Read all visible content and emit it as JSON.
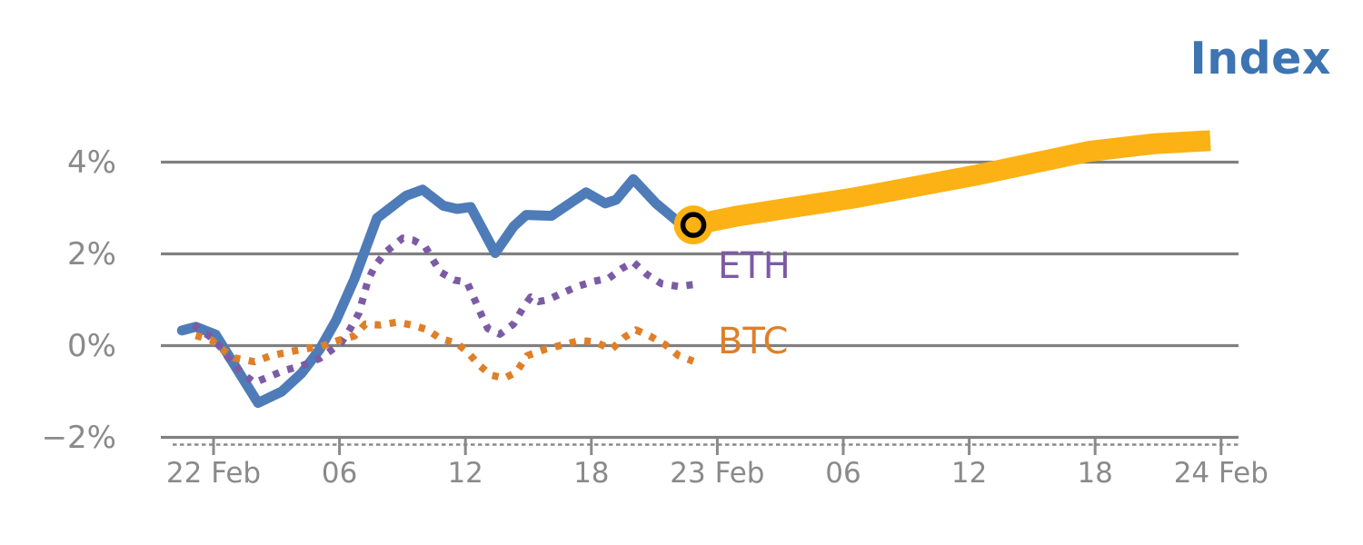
{
  "title": {
    "text": "Index"
  },
  "series_labels": {
    "eth": "ETH",
    "btc": "BTC"
  },
  "colors": {
    "title": "#3d74b2",
    "index_line": "#4e7cb8",
    "eth_line": "#7c5ba5",
    "btc_line": "#df7f28",
    "forecast_band": "#fcb215",
    "marker_ring": "#000000",
    "grid": "#808080",
    "axis": "#8a8a8a",
    "tick_text": "#8a8a8a"
  },
  "chart_data": {
    "type": "line",
    "title": "Index",
    "xlabel": "",
    "ylabel": "",
    "x_unit": "hours since 22 Feb 00:00",
    "y_unit": "percent change",
    "xlim": [
      -2.5,
      48.8
    ],
    "ylim": [
      -2.8,
      4.9
    ],
    "grid": "horizontal",
    "legend_position": "labels at right end of lines",
    "x_ticks": [
      {
        "hour": 0,
        "label": "22 Feb"
      },
      {
        "hour": 6,
        "label": "06"
      },
      {
        "hour": 12,
        "label": "12"
      },
      {
        "hour": 18,
        "label": "18"
      },
      {
        "hour": 24,
        "label": "23 Feb"
      },
      {
        "hour": 30,
        "label": "06"
      },
      {
        "hour": 36,
        "label": "12"
      },
      {
        "hour": 42,
        "label": "18"
      },
      {
        "hour": 48,
        "label": "24 Feb"
      }
    ],
    "y_ticks": [
      {
        "value": 4,
        "label": "4%"
      },
      {
        "value": 2,
        "label": "2%"
      },
      {
        "value": 0,
        "label": "0%"
      },
      {
        "value": -2,
        "label": "−2%"
      }
    ],
    "series": [
      {
        "name": "Index (history)",
        "style": "solid",
        "color_key": "index_line",
        "points": [
          [
            -1.5,
            0.33
          ],
          [
            -0.85,
            0.41
          ],
          [
            0.1,
            0.24
          ],
          [
            1.17,
            -0.55
          ],
          [
            2.12,
            -1.25
          ],
          [
            3.25,
            -1.0
          ],
          [
            4.2,
            -0.6
          ],
          [
            5.06,
            -0.08
          ],
          [
            5.84,
            0.55
          ],
          [
            6.71,
            1.45
          ],
          [
            7.79,
            2.78
          ],
          [
            9.18,
            3.27
          ],
          [
            9.96,
            3.4
          ],
          [
            10.95,
            3.05
          ],
          [
            11.6,
            2.98
          ],
          [
            12.25,
            3.02
          ],
          [
            12.8,
            2.55
          ],
          [
            13.42,
            2.02
          ],
          [
            14.3,
            2.6
          ],
          [
            14.9,
            2.85
          ],
          [
            16.1,
            2.83
          ],
          [
            17.75,
            3.34
          ],
          [
            18.66,
            3.1
          ],
          [
            19.18,
            3.18
          ],
          [
            20.0,
            3.63
          ],
          [
            21.08,
            3.1
          ],
          [
            22.08,
            2.72
          ],
          [
            22.86,
            2.63
          ]
        ]
      },
      {
        "name": "ETH",
        "style": "dotted",
        "color_key": "eth_line",
        "points": [
          [
            -0.95,
            0.45
          ],
          [
            -0.09,
            0.17
          ],
          [
            0.43,
            -0.08
          ],
          [
            0.87,
            -0.38
          ],
          [
            1.39,
            -0.61
          ],
          [
            1.95,
            -0.81
          ],
          [
            2.68,
            -0.67
          ],
          [
            3.38,
            -0.54
          ],
          [
            4.2,
            -0.44
          ],
          [
            5.06,
            -0.28
          ],
          [
            6.06,
            0.05
          ],
          [
            6.49,
            0.35
          ],
          [
            6.93,
            0.71
          ],
          [
            7.36,
            1.43
          ],
          [
            7.71,
            1.75
          ],
          [
            8.23,
            2.05
          ],
          [
            9.0,
            2.34
          ],
          [
            9.52,
            2.3
          ],
          [
            10.09,
            2.15
          ],
          [
            10.48,
            1.85
          ],
          [
            10.82,
            1.6
          ],
          [
            11.47,
            1.43
          ],
          [
            12.08,
            1.38
          ],
          [
            12.47,
            0.97
          ],
          [
            12.77,
            0.66
          ],
          [
            13.07,
            0.37
          ],
          [
            13.64,
            0.25
          ],
          [
            14.29,
            0.47
          ],
          [
            14.72,
            0.8
          ],
          [
            15.11,
            1.06
          ],
          [
            15.5,
            0.96
          ],
          [
            15.93,
            1.0
          ],
          [
            16.54,
            1.13
          ],
          [
            17.32,
            1.29
          ],
          [
            18.1,
            1.4
          ],
          [
            18.83,
            1.47
          ],
          [
            19.48,
            1.69
          ],
          [
            20.0,
            1.82
          ],
          [
            20.65,
            1.55
          ],
          [
            21.34,
            1.35
          ],
          [
            22.16,
            1.29
          ],
          [
            22.86,
            1.33
          ]
        ]
      },
      {
        "name": "BTC",
        "style": "dotted",
        "color_key": "btc_line",
        "points": [
          [
            -0.85,
            0.22
          ],
          [
            -0.1,
            0.12
          ],
          [
            0.35,
            -0.06
          ],
          [
            1.0,
            -0.27
          ],
          [
            1.95,
            -0.35
          ],
          [
            2.73,
            -0.22
          ],
          [
            3.46,
            -0.15
          ],
          [
            4.24,
            -0.08
          ],
          [
            5.11,
            -0.02
          ],
          [
            5.93,
            0.11
          ],
          [
            6.71,
            0.21
          ],
          [
            7.23,
            0.47
          ],
          [
            7.92,
            0.45
          ],
          [
            8.74,
            0.51
          ],
          [
            9.44,
            0.45
          ],
          [
            10.17,
            0.35
          ],
          [
            10.82,
            0.15
          ],
          [
            11.6,
            0.05
          ],
          [
            12.12,
            -0.15
          ],
          [
            12.64,
            -0.42
          ],
          [
            13.2,
            -0.64
          ],
          [
            13.85,
            -0.71
          ],
          [
            14.42,
            -0.58
          ],
          [
            14.94,
            -0.22
          ],
          [
            15.8,
            -0.08
          ],
          [
            16.58,
            0.01
          ],
          [
            17.45,
            0.11
          ],
          [
            18.18,
            0.08
          ],
          [
            18.96,
            -0.08
          ],
          [
            19.57,
            0.18
          ],
          [
            20.13,
            0.34
          ],
          [
            20.78,
            0.21
          ],
          [
            21.52,
            0.02
          ],
          [
            22.16,
            -0.22
          ],
          [
            22.86,
            -0.34
          ]
        ]
      },
      {
        "name": "Index (forecast)",
        "style": "band",
        "color_key": "forecast_band",
        "points": [
          [
            22.86,
            2.63
          ],
          [
            24.89,
            2.82
          ],
          [
            30.52,
            3.22
          ],
          [
            36.28,
            3.71
          ],
          [
            41.77,
            4.24
          ],
          [
            44.81,
            4.4
          ],
          [
            47.49,
            4.47
          ]
        ]
      }
    ],
    "marker": {
      "name": "current value marker",
      "x": 22.86,
      "y": 2.63,
      "shape": "ring"
    }
  }
}
